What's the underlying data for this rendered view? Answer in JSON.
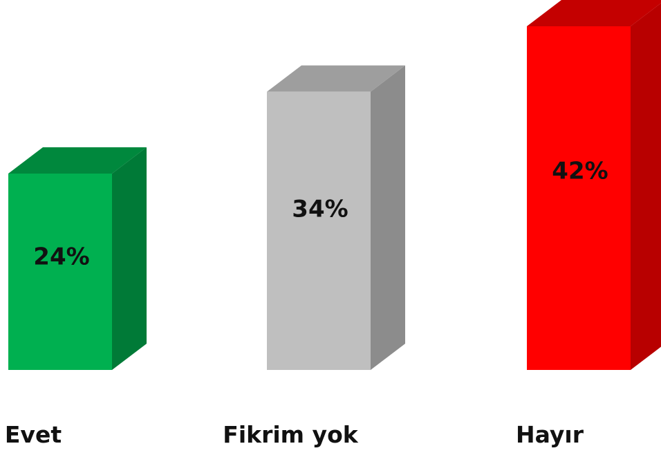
{
  "chart_data": {
    "type": "bar",
    "style": "3d-column",
    "categories": [
      "Evet",
      "Fikrim yok",
      "Hayır"
    ],
    "values": [
      24,
      34,
      42
    ],
    "data_labels": [
      "24%",
      "34%",
      "42%"
    ],
    "unit": "%",
    "ylim": [
      0,
      42
    ],
    "colors": [
      {
        "front": "#00b050",
        "side": "#007a37",
        "top": "#00883d"
      },
      {
        "front": "#bfbfbf",
        "side": "#8c8c8c",
        "top": "#9e9e9e"
      },
      {
        "front": "#ff0000",
        "side": "#b80000",
        "top": "#c40000"
      }
    ],
    "title": "",
    "xlabel": "",
    "ylabel": "",
    "grid": false,
    "legend": "none"
  }
}
